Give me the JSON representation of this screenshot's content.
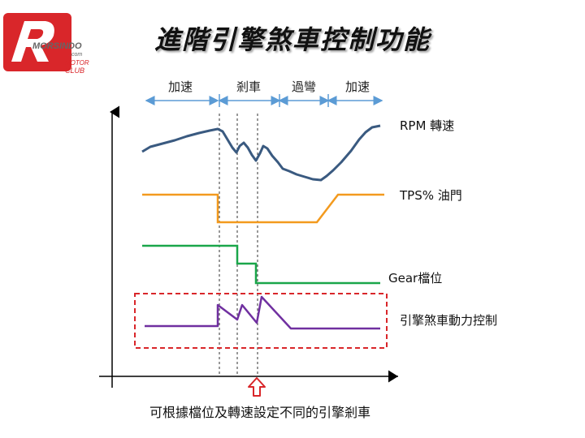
{
  "title": "進階引擎煞車控制功能",
  "logo": {
    "line1": "MORSINDO",
    "line2": ".com",
    "line3": "MOTOR",
    "line4": "CLUB"
  },
  "phases": [
    "加速",
    "剎車",
    "過彎",
    "加速"
  ],
  "series_labels": {
    "rpm": "RPM 轉速",
    "tps": "TPS% 油門",
    "gear": "Gear檔位",
    "ebc": "引擎煞車動力控制"
  },
  "footer": "可根據檔位及轉速設定不同的引擎剎車",
  "colors": {
    "rpm": "#3a5a80",
    "tps": "#f39a1e",
    "gear": "#1aa64a",
    "ebc": "#7030a0",
    "highlight": "#d9262a",
    "arrow_blue": "#5b9bd5"
  }
}
